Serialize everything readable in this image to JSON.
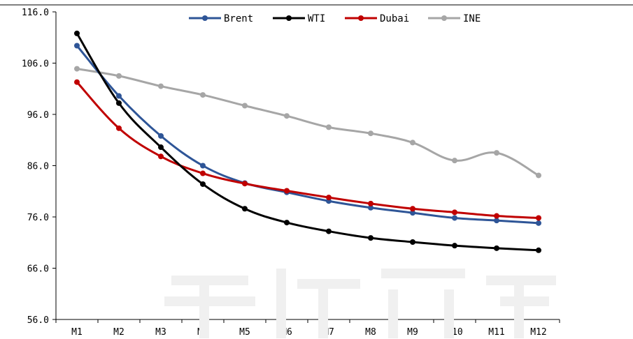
{
  "chart_data": {
    "type": "line",
    "categories": [
      "M1",
      "M2",
      "M3",
      "M4",
      "M5",
      "M6",
      "M7",
      "M8",
      "M9",
      "M10",
      "M11",
      "M12"
    ],
    "ylim": [
      56.0,
      116.0
    ],
    "yticks": [
      "116.0",
      "106.0",
      "96.0",
      "86.0",
      "76.0",
      "66.0",
      "56.0"
    ],
    "ytick_values": [
      116,
      106,
      96,
      86,
      76,
      66,
      56
    ],
    "grid": false,
    "legend_position": "top",
    "series": [
      {
        "name": "Brent",
        "color": "#2E5597",
        "values": [
          109.4,
          99.6,
          91.8,
          86.0,
          82.6,
          80.8,
          79.1,
          77.8,
          76.8,
          75.8,
          75.3,
          74.8
        ]
      },
      {
        "name": "WTI",
        "color": "#000000",
        "values": [
          111.8,
          98.2,
          89.6,
          82.4,
          77.6,
          74.9,
          73.2,
          71.9,
          71.1,
          70.4,
          69.9,
          69.5
        ]
      },
      {
        "name": "Dubai",
        "color": "#C00000",
        "values": [
          102.3,
          93.3,
          87.8,
          84.5,
          82.5,
          81.1,
          79.8,
          78.6,
          77.6,
          76.9,
          76.2,
          75.8
        ]
      },
      {
        "name": "INE",
        "color": "#A6A6A6",
        "values": [
          104.9,
          103.5,
          101.5,
          99.8,
          97.7,
          95.7,
          93.5,
          92.3,
          90.5,
          87.0,
          88.5,
          84.1
        ]
      }
    ]
  }
}
